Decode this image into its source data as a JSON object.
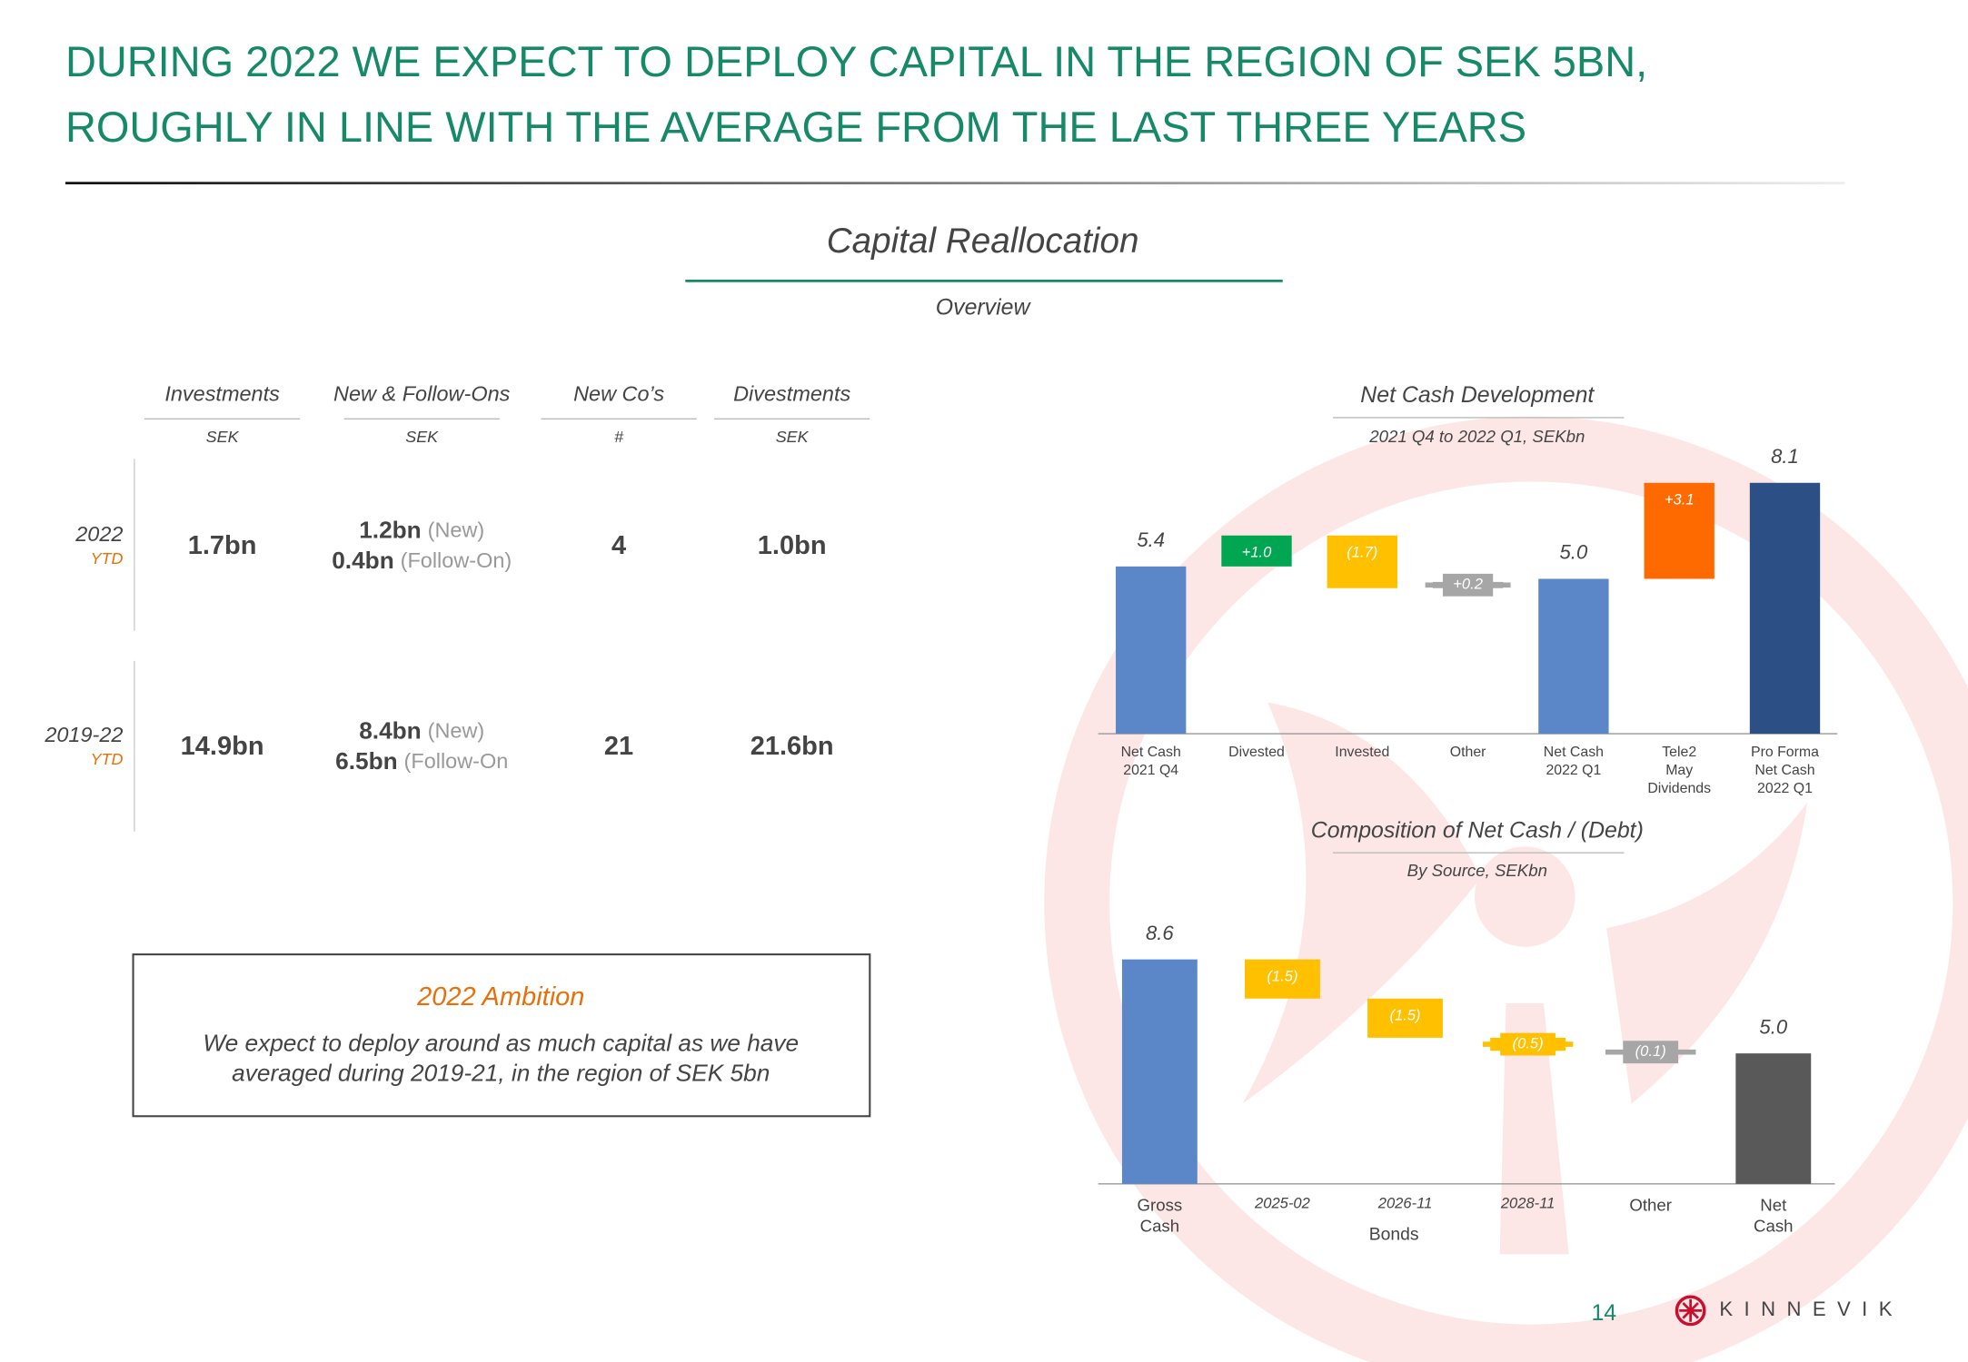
{
  "header": {
    "title_lines": [
      "DURING 2022 WE EXPECT TO DEPLOY CAPITAL IN THE REGION OF SEK 5BN,",
      "ROUGHLY IN LINE WITH THE AVERAGE FROM THE LAST THREE YEARS"
    ]
  },
  "section": {
    "title": "Capital Reallocation",
    "subtitle": "Overview"
  },
  "table": {
    "columns": [
      {
        "title": "Investments",
        "unit": "SEK"
      },
      {
        "title": "New & Follow-Ons",
        "unit": "SEK"
      },
      {
        "title": "New Co’s",
        "unit": "#"
      },
      {
        "title": "Divestments",
        "unit": "SEK"
      }
    ],
    "rows": [
      {
        "period": "2022",
        "sub": "YTD",
        "cells": [
          [
            [
              "1.7bn"
            ]
          ],
          [
            [
              "1.2bn",
              "(New)"
            ],
            [
              "0.4bn",
              "(Follow-On)"
            ]
          ],
          [
            [
              "4"
            ]
          ],
          [
            [
              "1.0bn"
            ]
          ]
        ]
      },
      {
        "period": "2019-22",
        "sub": "YTD",
        "cells": [
          [
            [
              "14.9bn"
            ]
          ],
          [
            [
              "8.4bn",
              "(New)"
            ],
            [
              "6.5bn",
              "(Follow-On"
            ]
          ],
          [
            [
              "21"
            ]
          ],
          [
            [
              "21.6bn"
            ]
          ]
        ]
      }
    ]
  },
  "ambition": {
    "title": "2022 Ambition",
    "text_lines": [
      "We expect to deploy around as much capital as we have",
      "averaged during 2019-21, in the region of SEK 5bn"
    ]
  },
  "chart_data": [
    {
      "type": "waterfall",
      "title": "Net Cash Development",
      "subtitle": "2021 Q4 to 2022 Q1, SEKbn",
      "categories": [
        [
          "Net Cash",
          "2021 Q4"
        ],
        [
          "Divested"
        ],
        [
          "Invested"
        ],
        [
          "Other"
        ],
        [
          "Net Cash",
          "2022 Q1"
        ],
        [
          "Tele2",
          "May",
          "Dividends"
        ],
        [
          "Pro Forma",
          "Net Cash",
          "2022 Q1"
        ]
      ],
      "measures": [
        "total",
        "relative",
        "relative",
        "relative",
        "total",
        "relative",
        "total"
      ],
      "values": [
        5.4,
        1.0,
        -1.7,
        0.2,
        5.0,
        3.1,
        8.1
      ],
      "value_labels": [
        "5.4",
        "+1.0",
        "(1.7)",
        "+0.2",
        "5.0",
        "+3.1",
        "8.1"
      ],
      "colors": [
        "#5b87c8",
        "#00a651",
        "#ffc000",
        "#a6a6a6",
        "#5b87c8",
        "#ff6a00",
        "#2c4f86"
      ]
    },
    {
      "type": "waterfall",
      "title": "Composition of Net Cash / (Debt)",
      "subtitle": "By Source, SEKbn",
      "categories": [
        [
          "Gross",
          "Cash"
        ],
        [
          "2025-02"
        ],
        [
          "2026-11"
        ],
        [
          "2028-11"
        ],
        [
          "Other"
        ],
        [
          "Net",
          "Cash"
        ]
      ],
      "group_label": "Bonds",
      "measures": [
        "total",
        "relative",
        "relative",
        "relative",
        "relative",
        "total"
      ],
      "values": [
        8.6,
        -1.5,
        -1.5,
        -0.5,
        -0.1,
        5.0
      ],
      "value_labels": [
        "8.6",
        "(1.5)",
        "(1.5)",
        "(0.5)",
        "(0.1)",
        "5.0"
      ],
      "colors": [
        "#5b87c8",
        "#ffc000",
        "#ffc000",
        "#ffc000",
        "#a6a6a6",
        "#595959"
      ]
    }
  ],
  "footer": {
    "page": "14",
    "brand": "KINNEVIK"
  }
}
